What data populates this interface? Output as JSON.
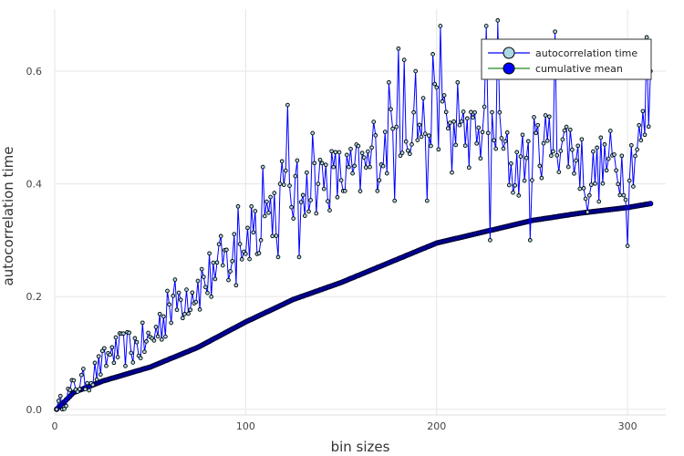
{
  "chart_data": {
    "type": "line",
    "xlabel": "bin sizes",
    "ylabel": "autocorrelation time",
    "xlim": [
      0,
      320
    ],
    "ylim": [
      -0.01,
      0.71
    ],
    "xticks": [
      0,
      100,
      200,
      300
    ],
    "yticks": [
      0.0,
      0.2,
      0.4,
      0.6
    ],
    "xtick_labels": [
      "0",
      "100",
      "200",
      "300"
    ],
    "ytick_labels": [
      "0.0",
      "0.2",
      "0.4",
      "0.6"
    ],
    "grid": true,
    "legend_position": "top-right",
    "x_start": 1,
    "x_end": 312,
    "series": [
      {
        "name": "autocorrelation time",
        "color": "#0000ff",
        "marker_color": "#add8e6",
        "anchors": [
          [
            1,
            0.0
          ],
          [
            10,
            0.04
          ],
          [
            20,
            0.06
          ],
          [
            30,
            0.1
          ],
          [
            40,
            0.11
          ],
          [
            50,
            0.12
          ],
          [
            60,
            0.18
          ],
          [
            70,
            0.21
          ],
          [
            80,
            0.23
          ],
          [
            90,
            0.26
          ],
          [
            100,
            0.3
          ],
          [
            110,
            0.35
          ],
          [
            120,
            0.37
          ],
          [
            130,
            0.39
          ],
          [
            140,
            0.41
          ],
          [
            150,
            0.41
          ],
          [
            160,
            0.42
          ],
          [
            170,
            0.45
          ],
          [
            180,
            0.5
          ],
          [
            190,
            0.5
          ],
          [
            200,
            0.52
          ],
          [
            210,
            0.5
          ],
          [
            220,
            0.48
          ],
          [
            230,
            0.5
          ],
          [
            240,
            0.42
          ],
          [
            250,
            0.46
          ],
          [
            260,
            0.48
          ],
          [
            270,
            0.47
          ],
          [
            280,
            0.41
          ],
          [
            290,
            0.44
          ],
          [
            300,
            0.43
          ],
          [
            312,
            0.52
          ]
        ],
        "noise_amplitude": 0.06,
        "peaks": [
          [
            30,
            0.11
          ],
          [
            59,
            0.21
          ],
          [
            83,
            0.26
          ],
          [
            96,
            0.36
          ],
          [
            103,
            0.36
          ],
          [
            109,
            0.43
          ],
          [
            119,
            0.44
          ],
          [
            122,
            0.54
          ],
          [
            132,
            0.42
          ],
          [
            135,
            0.49
          ],
          [
            167,
            0.51
          ],
          [
            175,
            0.58
          ],
          [
            180,
            0.64
          ],
          [
            183,
            0.62
          ],
          [
            189,
            0.6
          ],
          [
            195,
            0.66
          ],
          [
            198,
            0.63
          ],
          [
            202,
            0.68
          ],
          [
            211,
            0.58
          ],
          [
            226,
            0.68
          ],
          [
            232,
            0.69
          ],
          [
            262,
            0.67
          ],
          [
            300,
            0.62
          ],
          [
            310,
            0.66
          ]
        ],
        "troughs": [
          [
            95,
            0.22
          ],
          [
            108,
            0.3
          ],
          [
            117,
            0.27
          ],
          [
            128,
            0.27
          ],
          [
            178,
            0.37
          ],
          [
            195,
            0.37
          ],
          [
            208,
            0.42
          ],
          [
            228,
            0.3
          ],
          [
            249,
            0.3
          ],
          [
            260,
            0.45
          ],
          [
            279,
            0.35
          ],
          [
            300,
            0.29
          ],
          [
            312,
            0.6
          ]
        ]
      },
      {
        "name": "cumulative mean",
        "color": "#228b22",
        "marker_color": "#0000ff",
        "anchors": [
          [
            1,
            0.0
          ],
          [
            10,
            0.03
          ],
          [
            25,
            0.05
          ],
          [
            50,
            0.075
          ],
          [
            75,
            0.11
          ],
          [
            100,
            0.155
          ],
          [
            125,
            0.195
          ],
          [
            150,
            0.225
          ],
          [
            175,
            0.26
          ],
          [
            200,
            0.295
          ],
          [
            225,
            0.315
          ],
          [
            250,
            0.335
          ],
          [
            275,
            0.348
          ],
          [
            300,
            0.358
          ],
          [
            312,
            0.365
          ]
        ]
      }
    ]
  }
}
